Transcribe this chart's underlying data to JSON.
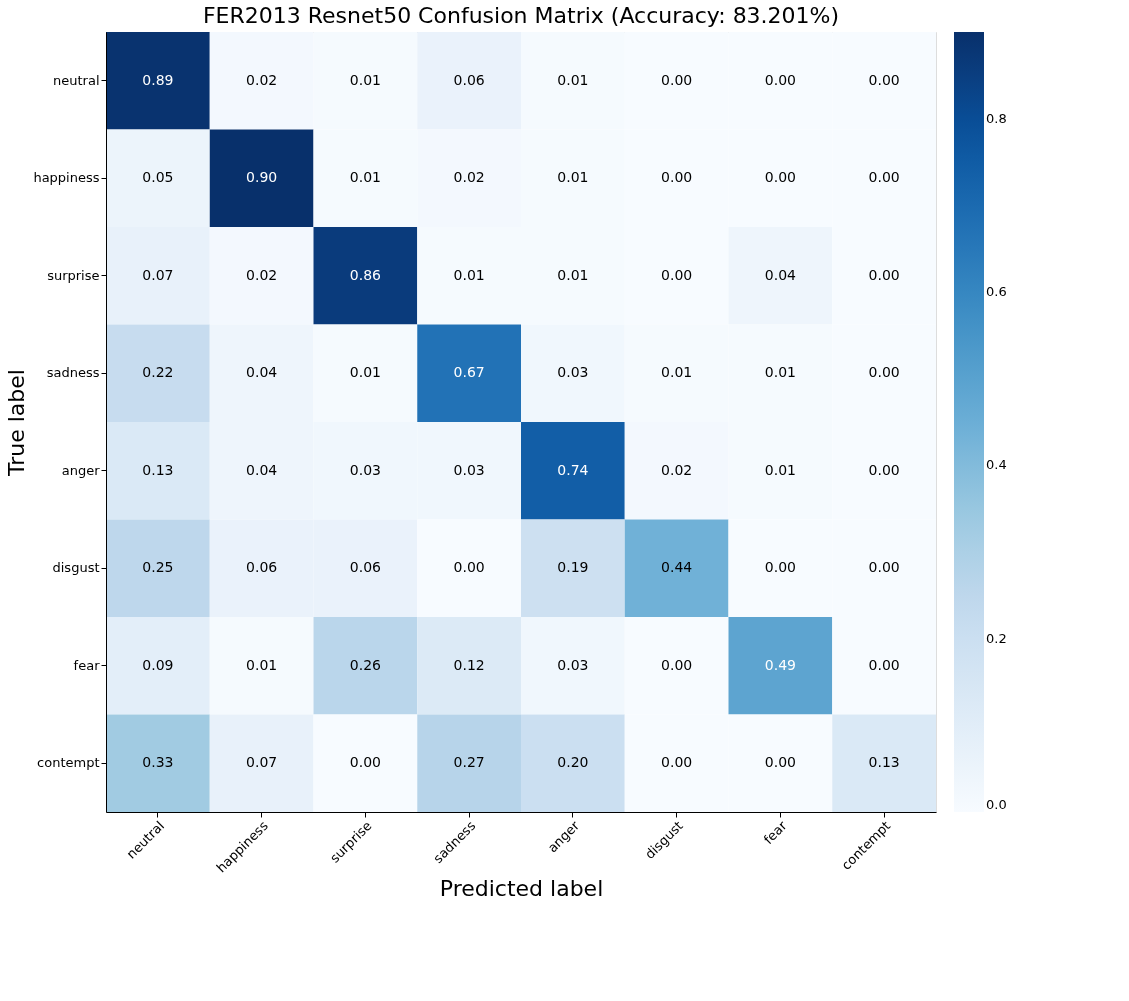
{
  "chart_data": {
    "type": "heatmap",
    "title": "FER2013 Resnet50 Confusion Matrix (Accuracy: 83.201%)",
    "xlabel": "Predicted label",
    "ylabel": "True label",
    "categories": [
      "neutral",
      "happiness",
      "surprise",
      "sadness",
      "anger",
      "disgust",
      "fear",
      "contempt"
    ],
    "y_categories": [
      "neutral",
      "happiness",
      "surprise",
      "sadness",
      "anger",
      "disgust",
      "fear",
      "contempt"
    ],
    "cells": [
      [
        0.89,
        0.02,
        0.01,
        0.06,
        0.01,
        0.0,
        0.0,
        0.0
      ],
      [
        0.05,
        0.9,
        0.01,
        0.02,
        0.01,
        0.0,
        0.0,
        0.0
      ],
      [
        0.07,
        0.02,
        0.86,
        0.01,
        0.01,
        0.0,
        0.04,
        0.0
      ],
      [
        0.22,
        0.04,
        0.01,
        0.67,
        0.03,
        0.01,
        0.01,
        0.0
      ],
      [
        0.13,
        0.04,
        0.03,
        0.03,
        0.74,
        0.02,
        0.01,
        0.0
      ],
      [
        0.25,
        0.06,
        0.06,
        0.0,
        0.19,
        0.44,
        0.0,
        0.0
      ],
      [
        0.09,
        0.01,
        0.26,
        0.12,
        0.03,
        0.0,
        0.49,
        0.0
      ],
      [
        0.33,
        0.07,
        0.0,
        0.27,
        0.2,
        0.0,
        0.0,
        0.13
      ]
    ],
    "cell_labels": [
      [
        "0.89",
        "0.02",
        "0.01",
        "0.06",
        "0.01",
        "0.00",
        "0.00",
        "0.00"
      ],
      [
        "0.05",
        "0.90",
        "0.01",
        "0.02",
        "0.01",
        "0.00",
        "0.00",
        "0.00"
      ],
      [
        "0.07",
        "0.02",
        "0.86",
        "0.01",
        "0.01",
        "0.00",
        "0.04",
        "0.00"
      ],
      [
        "0.22",
        "0.04",
        "0.01",
        "0.67",
        "0.03",
        "0.01",
        "0.01",
        "0.00"
      ],
      [
        "0.13",
        "0.04",
        "0.03",
        "0.03",
        "0.74",
        "0.02",
        "0.01",
        "0.00"
      ],
      [
        "0.25",
        "0.06",
        "0.06",
        "0.00",
        "0.19",
        "0.44",
        "0.00",
        "0.00"
      ],
      [
        "0.09",
        "0.01",
        "0.26",
        "0.12",
        "0.03",
        "0.00",
        "0.49",
        "0.00"
      ],
      [
        "0.33",
        "0.07",
        "0.00",
        "0.27",
        "0.20",
        "0.00",
        "0.00",
        "0.13"
      ]
    ],
    "clim": [
      0,
      0.9
    ],
    "cticks": [
      {
        "value": 0,
        "label": "0.0"
      },
      0.2,
      0.4,
      0.6,
      0.8
    ],
    "grid": false
  }
}
